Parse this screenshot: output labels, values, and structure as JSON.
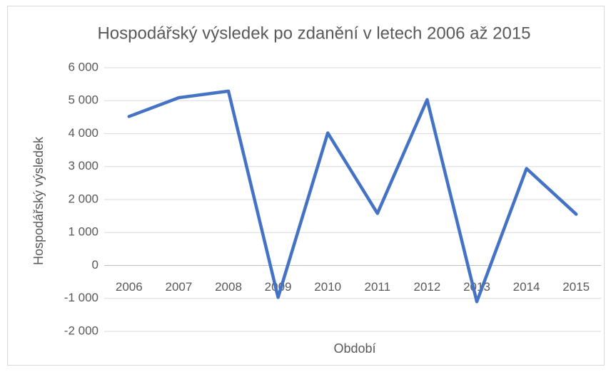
{
  "chart_data": {
    "type": "line",
    "title": "Hospodářský výsledek po zdanění v letech 2006 až 2015",
    "x_label": "Období",
    "y_label": "Hospodářský výsledek",
    "categories": [
      "2006",
      "2007",
      "2008",
      "2009",
      "2010",
      "2011",
      "2012",
      "2013",
      "2014",
      "2015"
    ],
    "series": [
      {
        "name": "Hospodářský výsledek",
        "color": "#4472c4",
        "values": [
          4520,
          5090,
          5290,
          -970,
          4020,
          1580,
          5030,
          -1100,
          2940,
          1555
        ]
      }
    ],
    "ylim": [
      -2000,
      6000
    ],
    "yticks": [
      {
        "value": -2000,
        "label": "-2 000"
      },
      {
        "value": -1000,
        "label": "-1 000"
      },
      0,
      {
        "value": 1000,
        "label": "1 000"
      },
      {
        "value": 2000,
        "label": "2 000"
      },
      {
        "value": 3000,
        "label": "3 000"
      },
      {
        "value": 4000,
        "label": "4 000"
      },
      {
        "value": 5000,
        "label": "5 000"
      },
      {
        "value": 6000,
        "label": "6 000"
      }
    ],
    "grid": true
  }
}
